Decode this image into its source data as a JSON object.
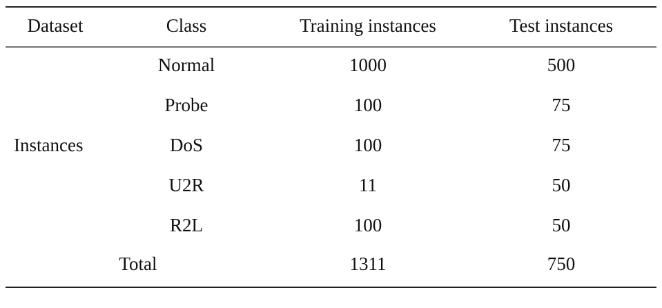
{
  "table": {
    "header": [
      "Dataset",
      "Class",
      "Training instances",
      "Test instances"
    ],
    "group": {
      "label": "Instances",
      "rows": [
        [
          "Normal",
          1000,
          500
        ],
        [
          "Probe",
          100,
          75
        ],
        [
          "DoS",
          100,
          75
        ],
        [
          "U2R",
          11,
          50
        ],
        [
          "R2L",
          100,
          50
        ]
      ]
    },
    "total": {
      "label": "Total",
      "training": 1311,
      "test": 750
    }
  }
}
